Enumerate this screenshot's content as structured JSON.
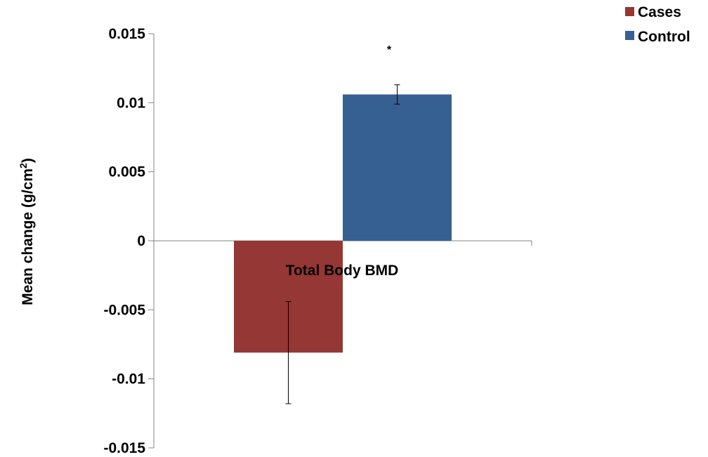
{
  "chart_data": {
    "type": "bar",
    "categories": [
      "Total Body BMD"
    ],
    "series": [
      {
        "name": "Cases",
        "color": "#953735",
        "values": [
          -0.0081
        ],
        "error": [
          0.0037
        ]
      },
      {
        "name": "Control",
        "color": "#376092",
        "values": [
          0.0106
        ],
        "error": [
          0.0007
        ]
      }
    ],
    "ylabel_main": "Mean change (g/cm",
    "ylabel_sup": "2",
    "ylabel_end": ")",
    "ylim": [
      -0.015,
      0.015
    ],
    "yticks": [
      0.015,
      0.01,
      0.005,
      0,
      -0.005,
      -0.01,
      -0.015
    ],
    "ytick_labels": [
      "0.015",
      "0.01",
      "0.005",
      "0",
      "-0.005",
      "-0.01",
      "-0.015"
    ],
    "annotation": "*",
    "legend_position": "top-right",
    "grid": false
  }
}
